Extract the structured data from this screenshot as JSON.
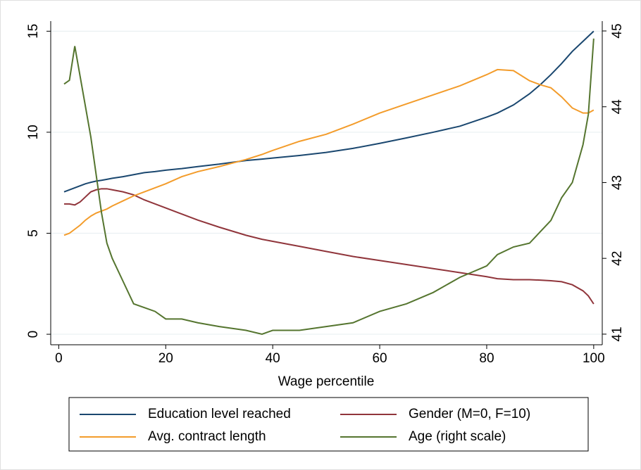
{
  "chart_data": {
    "type": "line",
    "x_label": "Wage percentile",
    "x": [
      1,
      2,
      3,
      4,
      5,
      6,
      7,
      8,
      9,
      10,
      12,
      14,
      16,
      18,
      20,
      23,
      26,
      30,
      35,
      38,
      40,
      45,
      50,
      55,
      60,
      65,
      70,
      75,
      80,
      82,
      85,
      88,
      90,
      92,
      94,
      96,
      98,
      99,
      100
    ],
    "xlim": [
      -1.5,
      101.6
    ],
    "xticks": [
      0,
      20,
      40,
      60,
      80,
      100
    ],
    "ylim": [
      -0.52,
      15.5
    ],
    "yticks": [
      0,
      5,
      10,
      15
    ],
    "y2lim": [
      40.86,
      45.13
    ],
    "y2ticks": [
      41,
      42,
      43,
      44,
      45
    ],
    "grid": true,
    "legend": "bottom",
    "series": [
      {
        "name": "Education level reached",
        "color": "#1a476f",
        "values": [
          7.05,
          7.15,
          7.25,
          7.35,
          7.45,
          7.52,
          7.58,
          7.62,
          7.67,
          7.72,
          7.8,
          7.9,
          8.0,
          8.05,
          8.12,
          8.2,
          8.3,
          8.42,
          8.6,
          8.67,
          8.72,
          8.85,
          9.0,
          9.2,
          9.45,
          9.72,
          10.0,
          10.3,
          10.75,
          10.95,
          11.35,
          11.9,
          12.35,
          12.85,
          13.4,
          14.0,
          14.5,
          14.75,
          15.0
        ]
      },
      {
        "name": "Gender (M=0, F=10)",
        "color": "#90353b",
        "values": [
          6.45,
          6.45,
          6.4,
          6.55,
          6.8,
          7.05,
          7.15,
          7.2,
          7.2,
          7.15,
          7.05,
          6.9,
          6.65,
          6.45,
          6.25,
          5.95,
          5.65,
          5.3,
          4.9,
          4.7,
          4.6,
          4.35,
          4.1,
          3.85,
          3.65,
          3.45,
          3.25,
          3.05,
          2.85,
          2.75,
          2.7,
          2.7,
          2.68,
          2.65,
          2.6,
          2.45,
          2.15,
          1.9,
          1.5
        ]
      },
      {
        "name": "Avg. contract length",
        "color": "#f39c2b",
        "values": [
          4.9,
          5.0,
          5.2,
          5.4,
          5.65,
          5.85,
          6.0,
          6.1,
          6.2,
          6.35,
          6.6,
          6.85,
          7.05,
          7.25,
          7.45,
          7.8,
          8.05,
          8.3,
          8.65,
          8.9,
          9.1,
          9.55,
          9.9,
          10.4,
          10.95,
          11.4,
          11.85,
          12.3,
          12.85,
          13.1,
          13.05,
          12.55,
          12.35,
          12.2,
          11.75,
          11.2,
          10.95,
          10.95,
          11.1
        ]
      },
      {
        "name": "Age (right scale)",
        "color": "#55752f",
        "axis": "y2",
        "values": [
          44.3,
          44.35,
          44.8,
          44.4,
          44.0,
          43.6,
          43.1,
          42.6,
          42.2,
          42.0,
          41.7,
          41.4,
          41.35,
          41.3,
          41.2,
          41.2,
          41.15,
          41.1,
          41.05,
          41.0,
          41.05,
          41.05,
          41.1,
          41.15,
          41.3,
          41.4,
          41.55,
          41.75,
          41.9,
          42.05,
          42.15,
          42.2,
          42.35,
          42.5,
          42.8,
          43.0,
          43.5,
          43.9,
          44.9
        ]
      }
    ]
  }
}
